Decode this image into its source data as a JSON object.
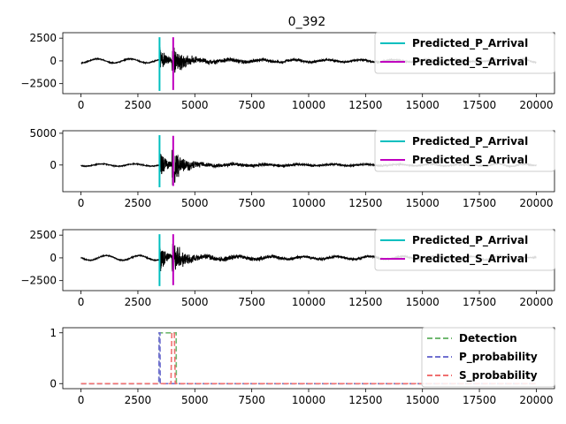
{
  "figure": {
    "title": "0_392"
  },
  "chart_data": [
    {
      "type": "line",
      "panel": "waveform-1",
      "xlim": [
        -800,
        20800
      ],
      "ylim": [
        -3600,
        3100
      ],
      "xticks": [
        0,
        2500,
        5000,
        7500,
        10000,
        12500,
        15000,
        17500,
        20000
      ],
      "yticks": [
        -2500,
        0,
        2500
      ],
      "series": [
        {
          "name": "",
          "color": "#000000",
          "trace": {
            "n": 20000,
            "noise": 90,
            "p_at": 3450,
            "s_at": 4000,
            "p_amp": 1600,
            "s_amp": 1900,
            "coda": 500,
            "wobble": 220,
            "seed": 11
          }
        }
      ],
      "legend": {
        "position": "top-right",
        "entries": [
          {
            "label": "Predicted_P_Arrival",
            "color": "#00bfbf",
            "style": "solid"
          },
          {
            "label": "Predicted_S_Arrival",
            "color": "#bf00bf",
            "style": "solid"
          }
        ]
      },
      "markers": [
        {
          "name": "Predicted_P_Arrival",
          "x": 3450,
          "color": "#00bfbf",
          "y_range": [
            -3300,
            2600
          ]
        },
        {
          "name": "Predicted_S_Arrival",
          "x": 4050,
          "color": "#bf00bf",
          "y_range": [
            -3200,
            2600
          ]
        }
      ]
    },
    {
      "type": "line",
      "panel": "waveform-2",
      "xlim": [
        -800,
        20800
      ],
      "ylim": [
        -4200,
        5400
      ],
      "xticks": [
        0,
        2500,
        5000,
        7500,
        10000,
        12500,
        15000,
        17500,
        20000
      ],
      "yticks": [
        0,
        5000
      ],
      "series": [
        {
          "name": "",
          "color": "#000000",
          "trace": {
            "n": 20000,
            "noise": 120,
            "p_at": 3450,
            "s_at": 4000,
            "p_amp": 2800,
            "s_amp": 3200,
            "coda": 650,
            "wobble": 180,
            "seed": 29
          }
        }
      ],
      "legend": {
        "position": "top-right",
        "entries": [
          {
            "label": "Predicted_P_Arrival",
            "color": "#00bfbf",
            "style": "solid"
          },
          {
            "label": "Predicted_S_Arrival",
            "color": "#bf00bf",
            "style": "solid"
          }
        ]
      },
      "markers": [
        {
          "name": "Predicted_P_Arrival",
          "x": 3450,
          "color": "#00bfbf",
          "y_range": [
            -3500,
            4700
          ]
        },
        {
          "name": "Predicted_S_Arrival",
          "x": 4050,
          "color": "#bf00bf",
          "y_range": [
            -3300,
            4600
          ]
        }
      ]
    },
    {
      "type": "line",
      "panel": "waveform-3",
      "xlim": [
        -800,
        20800
      ],
      "ylim": [
        -3600,
        3100
      ],
      "xticks": [
        0,
        2500,
        5000,
        7500,
        10000,
        12500,
        15000,
        17500,
        20000
      ],
      "yticks": [
        -2500,
        0,
        2500
      ],
      "series": [
        {
          "name": "",
          "color": "#000000",
          "trace": {
            "n": 20000,
            "noise": 90,
            "p_at": 3450,
            "s_at": 4000,
            "p_amp": 1700,
            "s_amp": 2000,
            "coda": 550,
            "wobble": 260,
            "seed": 47
          }
        }
      ],
      "legend": {
        "position": "top-right",
        "entries": [
          {
            "label": "Predicted_P_Arrival",
            "color": "#00bfbf",
            "style": "solid"
          },
          {
            "label": "Predicted_S_Arrival",
            "color": "#bf00bf",
            "style": "solid"
          }
        ]
      },
      "markers": [
        {
          "name": "Predicted_P_Arrival",
          "x": 3450,
          "color": "#00bfbf",
          "y_range": [
            -3100,
            2600
          ]
        },
        {
          "name": "Predicted_S_Arrival",
          "x": 4050,
          "color": "#bf00bf",
          "y_range": [
            -3000,
            2600
          ]
        }
      ]
    },
    {
      "type": "line",
      "panel": "probabilities",
      "xlim": [
        -800,
        20800
      ],
      "ylim": [
        -0.1,
        1.1
      ],
      "xticks": [
        0,
        2500,
        5000,
        7500,
        10000,
        12500,
        15000,
        17500,
        20000
      ],
      "yticks": [
        0,
        1
      ],
      "series": [
        {
          "name": "Detection",
          "color": "#70b870",
          "style": "dashed",
          "x": [
            0,
            3430,
            3440,
            4180,
            4190,
            20000
          ],
          "y": [
            0,
            0,
            1,
            1,
            0,
            0
          ]
        },
        {
          "name": "P_probability",
          "color": "#7070d0",
          "style": "dashed",
          "x": [
            0,
            3420,
            3430,
            3470,
            3480,
            20000
          ],
          "y": [
            0,
            0,
            1,
            1,
            0,
            0
          ]
        },
        {
          "name": "S_probability",
          "color": "#f07070",
          "style": "dashed",
          "x": [
            0,
            3950,
            3990,
            4100,
            4140,
            20000
          ],
          "y": [
            0,
            0,
            1,
            1,
            0,
            0
          ]
        }
      ],
      "legend": {
        "position": "top-right",
        "entries": [
          {
            "label": "Detection",
            "color": "#70b870",
            "style": "dashed"
          },
          {
            "label": "P_probability",
            "color": "#7070d0",
            "style": "dashed"
          },
          {
            "label": "S_probability",
            "color": "#f07070",
            "style": "dashed"
          }
        ]
      }
    }
  ]
}
